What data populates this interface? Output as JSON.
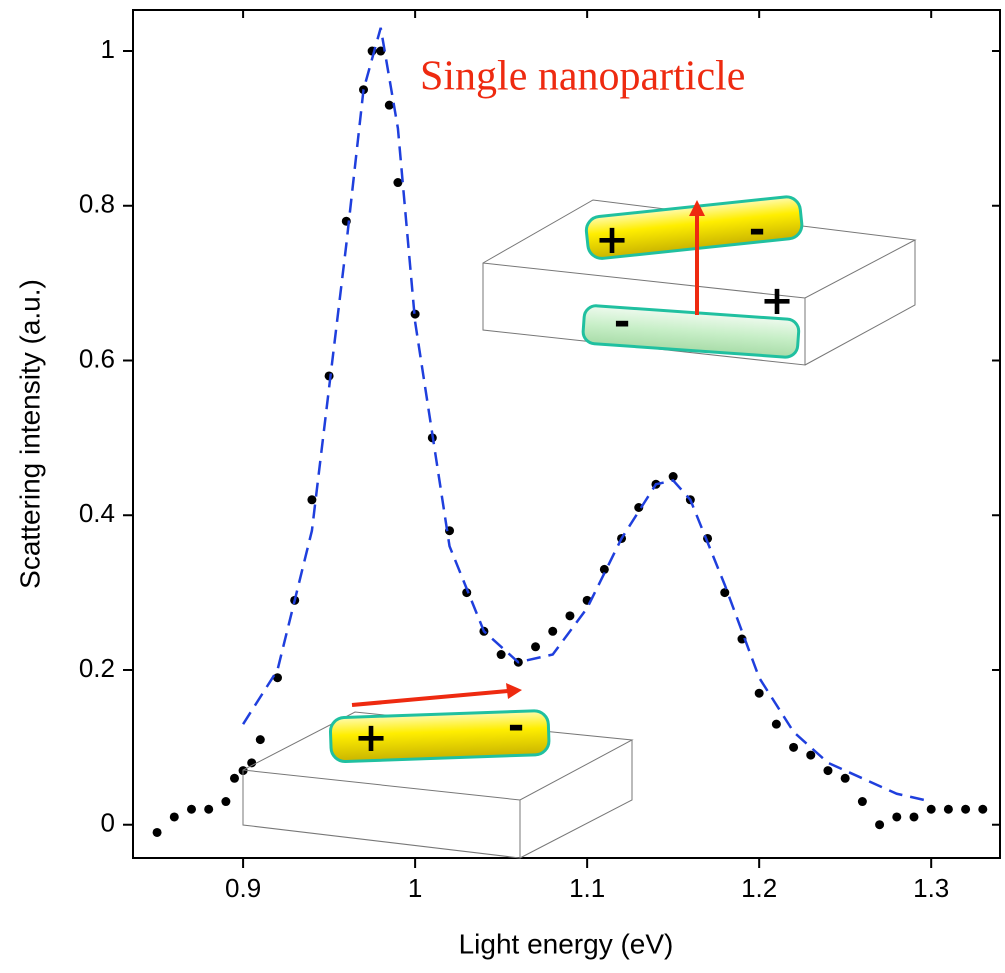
{
  "chart_data": {
    "type": "scatter",
    "xlabel": "Light energy (eV)",
    "ylabel": "Scattering intensity (a.u.)",
    "annotation": "Single nanoparticle",
    "charge_labels": [
      "+",
      "-",
      "-",
      "+",
      "+",
      "-"
    ],
    "xlim": [
      0.836,
      1.34
    ],
    "ylim": [
      -0.043,
      1.053
    ],
    "xticks": [
      0.9,
      1,
      1.1,
      1.2,
      1.3
    ],
    "yticks": [
      0,
      0.2,
      0.4,
      0.6,
      0.8,
      1
    ],
    "series": [
      {
        "type": "scatter",
        "color": "#000000",
        "x": [
          0.85,
          0.86,
          0.87,
          0.88,
          0.89,
          0.895,
          0.9,
          0.905,
          0.91,
          0.92,
          0.93,
          0.94,
          0.95,
          0.96,
          0.97,
          0.975,
          0.98,
          0.985,
          0.99,
          1.0,
          1.01,
          1.02,
          1.03,
          1.04,
          1.05,
          1.06,
          1.07,
          1.08,
          1.09,
          1.1,
          1.11,
          1.12,
          1.13,
          1.14,
          1.15,
          1.16,
          1.17,
          1.18,
          1.19,
          1.2,
          1.21,
          1.22,
          1.23,
          1.24,
          1.25,
          1.26,
          1.27,
          1.28,
          1.29,
          1.3,
          1.31,
          1.32,
          1.33
        ],
        "values": [
          -0.01,
          0.01,
          0.02,
          0.02,
          0.03,
          0.06,
          0.07,
          0.08,
          0.11,
          0.19,
          0.29,
          0.42,
          0.58,
          0.78,
          0.95,
          1.0,
          1.0,
          0.93,
          0.83,
          0.66,
          0.5,
          0.38,
          0.3,
          0.25,
          0.22,
          0.21,
          0.23,
          0.25,
          0.27,
          0.29,
          0.33,
          0.37,
          0.41,
          0.44,
          0.45,
          0.42,
          0.37,
          0.3,
          0.24,
          0.17,
          0.13,
          0.1,
          0.09,
          0.07,
          0.06,
          0.03,
          0.0,
          0.01,
          0.01,
          0.02,
          0.02,
          0.02,
          0.02
        ]
      },
      {
        "type": "line",
        "color": "#1f3fdd",
        "dashed": true,
        "x": [
          0.9,
          0.92,
          0.94,
          0.96,
          0.97,
          0.98,
          0.99,
          1.0,
          1.02,
          1.04,
          1.06,
          1.08,
          1.1,
          1.12,
          1.14,
          1.15,
          1.16,
          1.18,
          1.2,
          1.22,
          1.24,
          1.26,
          1.28,
          1.3
        ],
        "values": [
          0.13,
          0.2,
          0.38,
          0.75,
          0.95,
          1.03,
          0.9,
          0.65,
          0.36,
          0.25,
          0.21,
          0.22,
          0.28,
          0.37,
          0.44,
          0.445,
          0.42,
          0.31,
          0.19,
          0.12,
          0.08,
          0.06,
          0.04,
          0.03
        ]
      }
    ]
  }
}
